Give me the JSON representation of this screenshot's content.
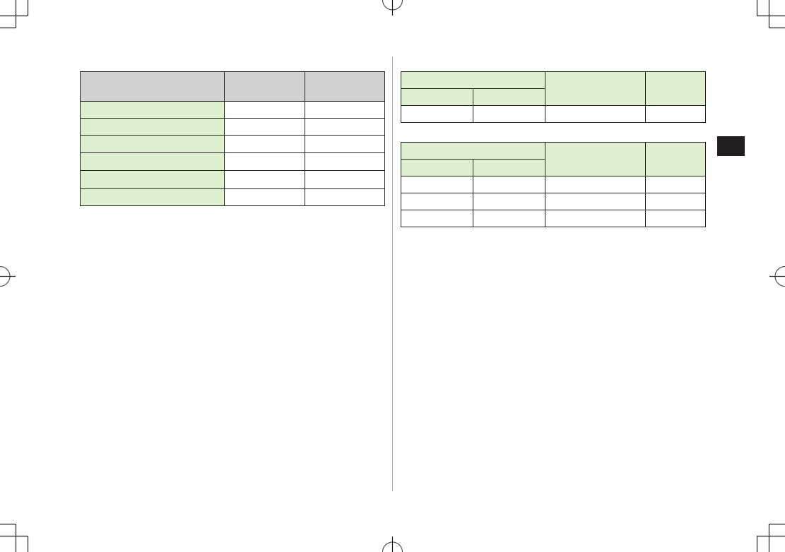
{
  "colors": {
    "header_gray": "#d2d2d2",
    "header_green": "#def0cd",
    "border": "#231f20",
    "cell_white": "#ffffff",
    "section_tab": "#231f20"
  },
  "tables": [
    {
      "id": "left-table"
    },
    {
      "id": "right-table-1"
    },
    {
      "id": "right-table-2"
    }
  ]
}
